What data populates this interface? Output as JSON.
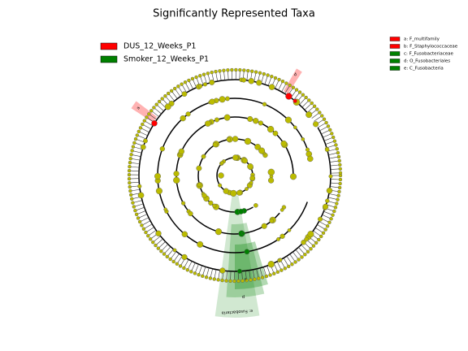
{
  "title": "Significantly Represented Taxa",
  "legend": [
    {
      "label": "DUS_12_Weeks_P1",
      "color": "#ff0000"
    },
    {
      "label": "Smoker_12_Weeks_P1",
      "color": "#008000"
    }
  ],
  "key": [
    {
      "label": "a: F_multifamily",
      "color": "#ff0000"
    },
    {
      "label": "b: F_Staphylococcaceae",
      "color": "#ff0000"
    },
    {
      "label": "c: F_Fusobacteriaceae",
      "color": "#008000"
    },
    {
      "label": "d: O_Fusobacteriales",
      "color": "#008000"
    },
    {
      "label": "e: C_Fusobacteria",
      "color": "#008000"
    }
  ],
  "clade_labels": [
    "a",
    "b",
    "c",
    "d",
    "e: Fusobacteria"
  ]
}
